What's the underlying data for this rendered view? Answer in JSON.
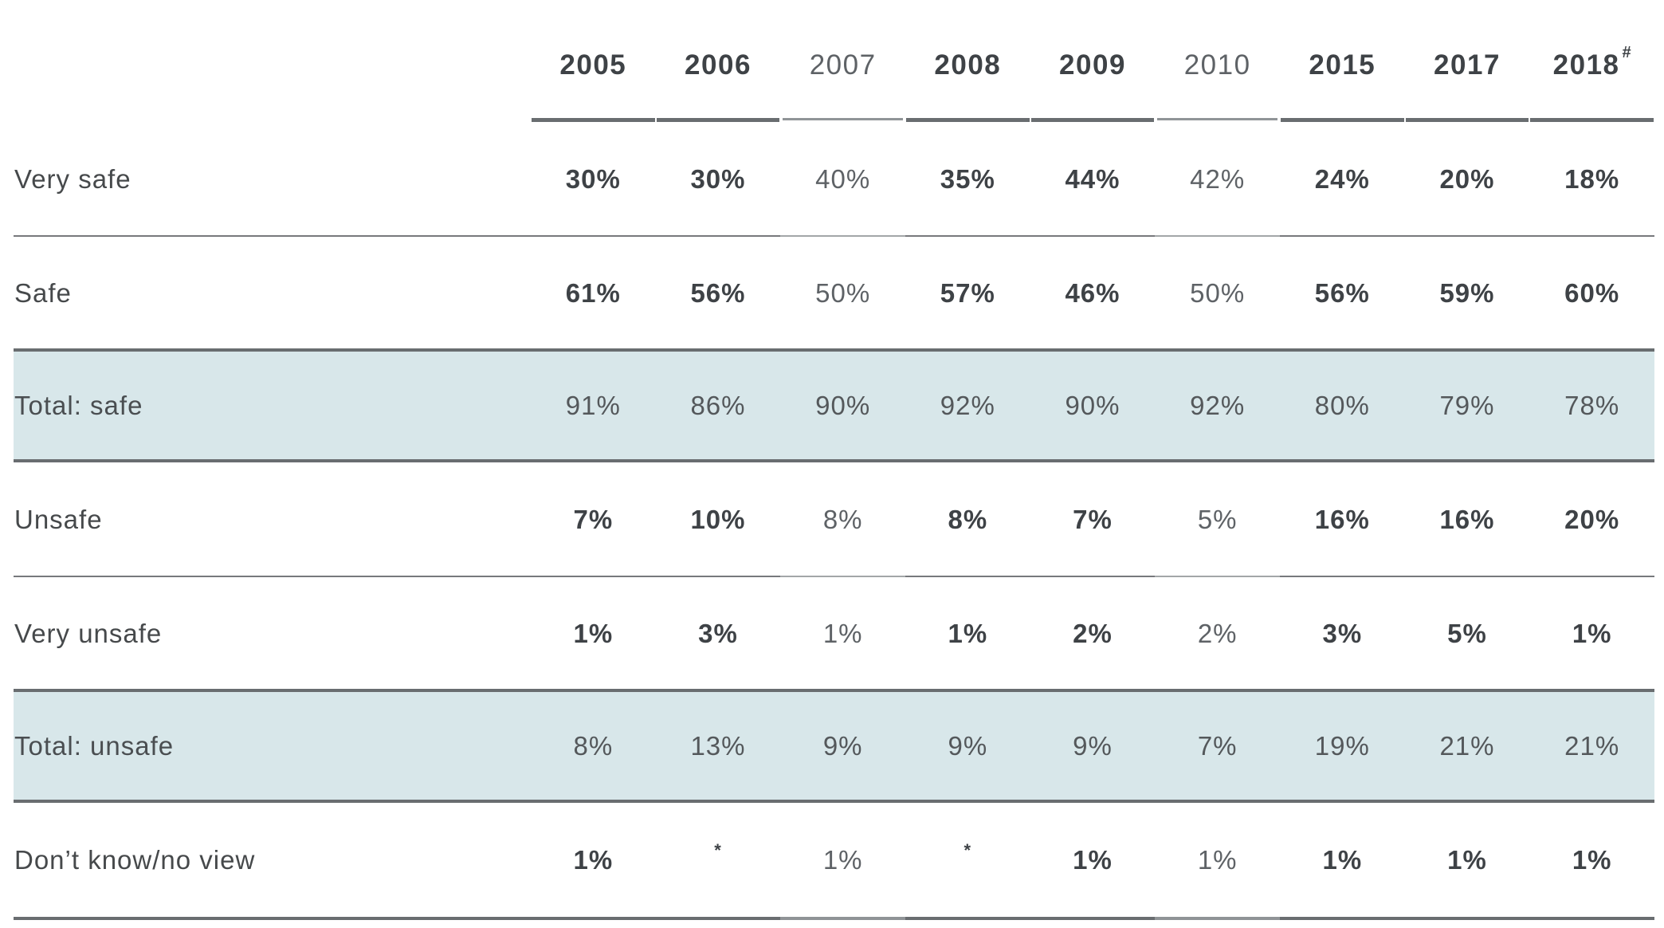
{
  "chart_data": {
    "type": "table",
    "title": "",
    "columns": [
      "2005",
      "2006",
      "2007",
      "2008",
      "2009",
      "2010",
      "2015",
      "2017",
      "2018#"
    ],
    "rows": [
      {
        "label": "Very safe",
        "values": [
          "30%",
          "30%",
          "40%",
          "35%",
          "44%",
          "42%",
          "24%",
          "20%",
          "18%"
        ]
      },
      {
        "label": "Safe",
        "values": [
          "61%",
          "56%",
          "50%",
          "57%",
          "46%",
          "50%",
          "56%",
          "59%",
          "60%"
        ]
      },
      {
        "label": "Total: safe",
        "values": [
          "91%",
          "86%",
          "90%",
          "92%",
          "90%",
          "92%",
          "80%",
          "79%",
          "78%"
        ]
      },
      {
        "label": "Unsafe",
        "values": [
          "7%",
          "10%",
          "8%",
          "8%",
          "7%",
          "5%",
          "16%",
          "16%",
          "20%"
        ]
      },
      {
        "label": "Very unsafe",
        "values": [
          "1%",
          "3%",
          "1%",
          "1%",
          "2%",
          "2%",
          "3%",
          "5%",
          "1%"
        ]
      },
      {
        "label": "Total: unsafe",
        "values": [
          "8%",
          "13%",
          "9%",
          "9%",
          "9%",
          "7%",
          "19%",
          "21%",
          "21%"
        ]
      },
      {
        "label": "Don’t know/no view",
        "values": [
          "1%",
          "*",
          "1%",
          "*",
          "1%",
          "1%",
          "1%",
          "1%",
          "1%"
        ]
      }
    ],
    "layout": {
      "highlighted_row_indices": [
        2,
        5
      ],
      "deemphasized_column_indices": [
        2,
        5
      ],
      "grid": "horizontal-rules-only",
      "legend_position": "none"
    }
  },
  "colors": {
    "highlight_row_bg": "#d8e7ea",
    "emphasis_text": "#3e4246",
    "label_text": "#46494b",
    "deemphasized_text": "#5e6266",
    "highlight_text": "#54585b",
    "rule_dark": "#696d70",
    "rule_medium": "#77797c",
    "rule_light": "#8f9396"
  }
}
